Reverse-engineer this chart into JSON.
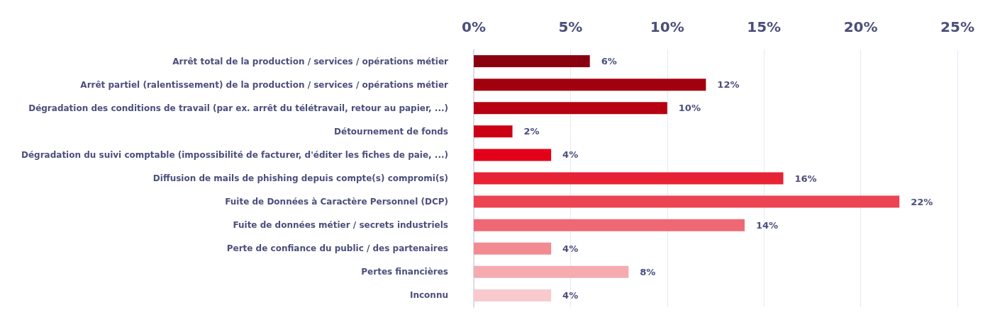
{
  "chart_data": {
    "type": "bar",
    "orientation": "horizontal",
    "categories": [
      "Arrêt total de la production / services / opérations métier",
      "Arrêt partiel (ralentissement) de la production / services / opérations métier",
      "Dégradation des conditions de travail (par ex. arrêt du télétravail, retour au papier, ...)",
      "Détournement de fonds",
      "Dégradation du suivi comptable (impossibilité de facturer, d'éditer les fiches de paie, ...)",
      "Diffusion de mails de phishing depuis compte(s) compromi(s)",
      "Fuite de Données à Caractère Personnel (DCP)",
      "Fuite de données métier / secrets industriels",
      "Perte de confiance du public / des partenaires",
      "Pertes financières",
      "Inconnu"
    ],
    "values": [
      6,
      12,
      10,
      2,
      4,
      16,
      22,
      14,
      4,
      8,
      4
    ],
    "value_labels": [
      "6%",
      "12%",
      "10%",
      "2%",
      "4%",
      "16%",
      "22%",
      "14%",
      "4%",
      "8%",
      "4%"
    ],
    "colors": [
      "#8a000f",
      "#a3000f",
      "#b70011",
      "#cc0014",
      "#e30018",
      "#e82235",
      "#ec4452",
      "#f06873",
      "#f38a92",
      "#f6abb1",
      "#f8cacd"
    ],
    "xlim": [
      0,
      25
    ],
    "xticks": [
      {
        "value": 0,
        "label": "0%"
      },
      {
        "value": 5,
        "label": "5%"
      },
      {
        "value": 10,
        "label": "10%"
      },
      {
        "value": 15,
        "label": "15%"
      },
      {
        "value": 20,
        "label": "20%"
      },
      {
        "value": 25,
        "label": "25%"
      }
    ],
    "grid": "x"
  }
}
